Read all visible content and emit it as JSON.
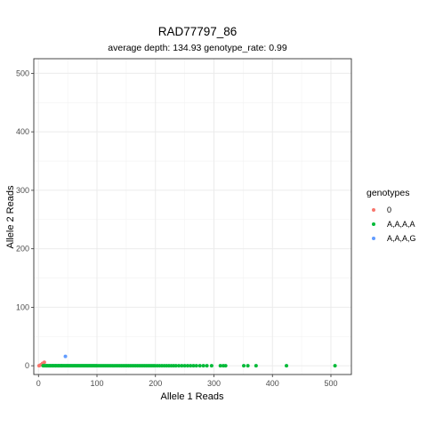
{
  "chart_data": {
    "type": "scatter",
    "title": "RAD77797_86",
    "subtitle": "average depth:  134.93  genotype_rate:  0.99",
    "xlabel": "Allele 1 Reads",
    "ylabel": "Allele 2 Reads",
    "xlim": [
      -8,
      535
    ],
    "ylim": [
      -15,
      525
    ],
    "xticks": [
      0,
      100,
      200,
      300,
      400,
      500
    ],
    "yticks": [
      0,
      100,
      200,
      300,
      400,
      500
    ],
    "grid": true,
    "legend_title": "genotypes",
    "legend_position": "right",
    "series": [
      {
        "name": "0",
        "color": "#F8766D",
        "x": [
          1,
          3,
          5,
          7,
          10
        ],
        "y": [
          0,
          1,
          2,
          4,
          6
        ]
      },
      {
        "name": "A,A,A,A",
        "color": "#00BA38",
        "x": [
          8,
          10,
          12,
          14,
          15,
          17,
          19,
          20,
          22,
          24,
          25,
          27,
          29,
          30,
          32,
          34,
          35,
          37,
          39,
          40,
          42,
          44,
          46,
          48,
          50,
          52,
          54,
          56,
          58,
          60,
          62,
          64,
          66,
          68,
          70,
          72,
          74,
          76,
          78,
          80,
          82,
          84,
          86,
          88,
          90,
          92,
          94,
          96,
          98,
          100,
          103,
          106,
          109,
          112,
          115,
          118,
          121,
          124,
          127,
          130,
          133,
          136,
          139,
          142,
          145,
          148,
          151,
          154,
          157,
          160,
          163,
          166,
          169,
          172,
          175,
          178,
          181,
          184,
          187,
          190,
          193,
          196,
          199,
          203,
          207,
          211,
          215,
          219,
          223,
          227,
          231,
          235,
          240,
          245,
          250,
          255,
          260,
          265,
          270,
          276,
          282,
          288,
          296,
          311,
          316,
          320,
          351,
          358,
          372,
          424,
          507
        ],
        "y": [
          0,
          0,
          0,
          0,
          0,
          0,
          0,
          0,
          0,
          0,
          0,
          0,
          0,
          0,
          0,
          0,
          0,
          0,
          0,
          0,
          0,
          0,
          0,
          0,
          0,
          0,
          0,
          0,
          0,
          0,
          0,
          0,
          0,
          0,
          0,
          0,
          0,
          0,
          0,
          0,
          0,
          0,
          0,
          0,
          0,
          0,
          0,
          0,
          0,
          0,
          0,
          0,
          0,
          0,
          0,
          0,
          0,
          0,
          0,
          0,
          0,
          0,
          0,
          0,
          0,
          0,
          0,
          0,
          0,
          0,
          0,
          0,
          0,
          0,
          0,
          0,
          0,
          0,
          0,
          0,
          0,
          0,
          0,
          0,
          0,
          0,
          0,
          0,
          0,
          0,
          0,
          0,
          0,
          0,
          0,
          0,
          0,
          0,
          0,
          0,
          0,
          0,
          0,
          0,
          0,
          0,
          0,
          0,
          0,
          0,
          0
        ]
      },
      {
        "name": "A,A,A,G",
        "color": "#619CFF",
        "x": [
          46
        ],
        "y": [
          16
        ]
      }
    ]
  }
}
